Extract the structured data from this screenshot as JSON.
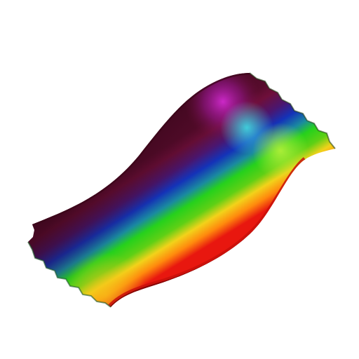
{
  "scene": {
    "background": "#ffffff",
    "object": "rainbow-shaded-wavy-surface",
    "colors": {
      "magenta": "#c41fb8",
      "maroon": "#6e0f3a",
      "violet": "#4a1670",
      "blue": "#1432b8",
      "cyan": "#33c9d6",
      "green": "#26d11c",
      "yellow": "#f2d21a",
      "orange": "#ff8a0d",
      "red": "#e8170f",
      "dark_red": "#8a0808"
    }
  }
}
